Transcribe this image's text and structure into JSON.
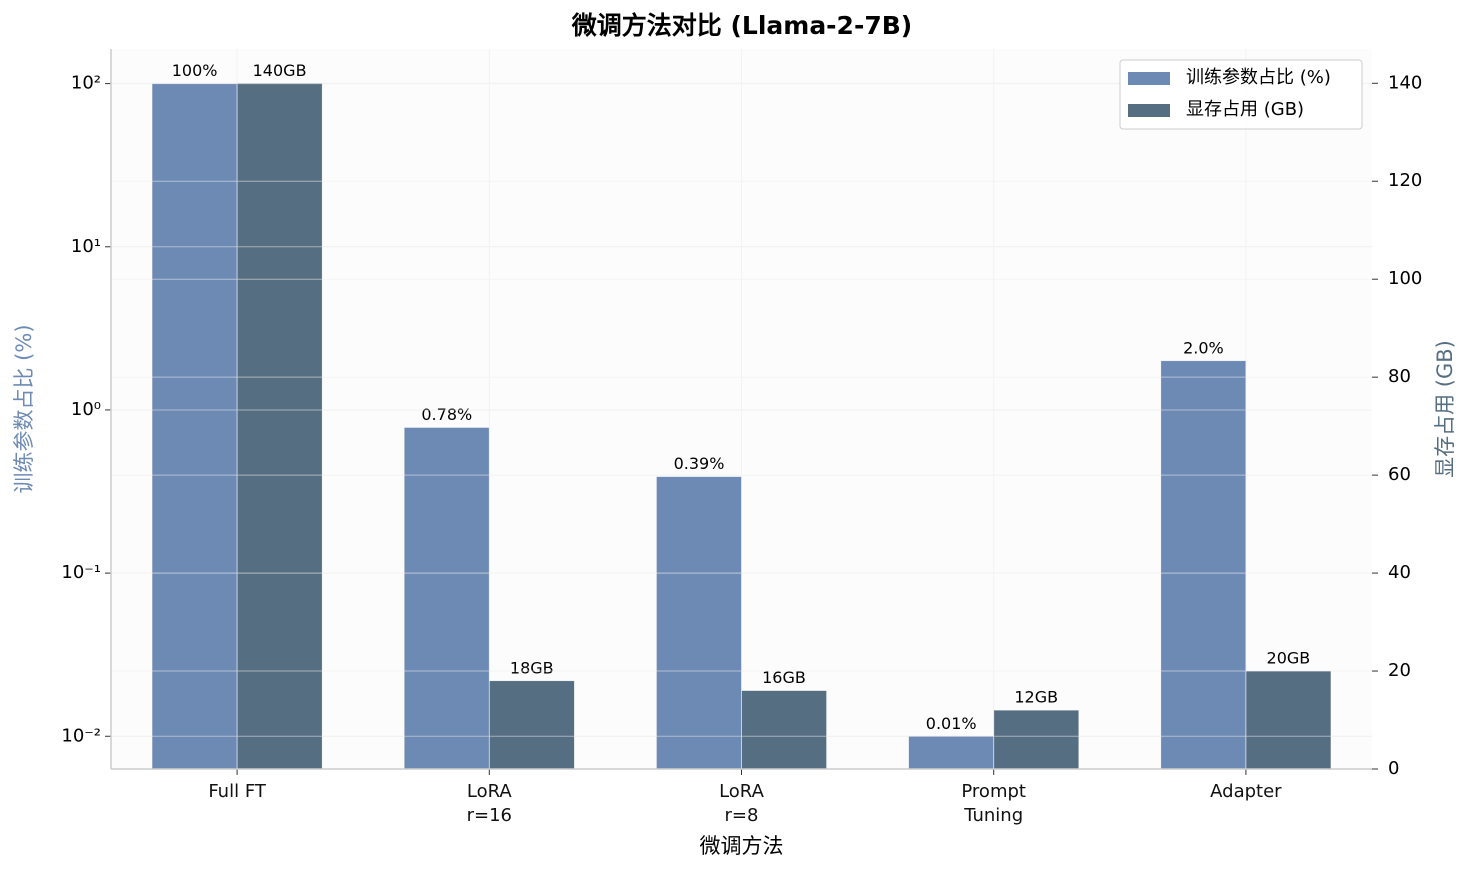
{
  "chart_data": {
    "type": "bar",
    "title": "微调方法对比 (Llama-2-7B)",
    "x_label": "微调方法",
    "y_label": "训练参数占比 (%)",
    "y2_label": "显存占用 (GB)",
    "categories": [
      "Full FT",
      "LoRA\nr=16",
      "LoRA\nr=8",
      "Prompt\nTuning",
      "Adapter"
    ],
    "y_scale": "log",
    "ylim": [
      0.0063,
      163
    ],
    "yticks": [
      {
        "value": 0.01,
        "label": "10⁻²"
      },
      {
        "value": 0.1,
        "label": "10⁻¹"
      },
      {
        "value": 1,
        "label": "10⁰"
      },
      {
        "value": 10,
        "label": "10¹"
      },
      {
        "value": 100,
        "label": "10²"
      }
    ],
    "y2lim": [
      0,
      147
    ],
    "y2ticks": [
      0,
      20,
      40,
      60,
      80,
      100,
      120,
      140
    ],
    "grid": true,
    "legend": "upper right",
    "series": [
      {
        "name": "训练参数占比 (%)",
        "color": "#6d8ab5",
        "values": [
          100,
          0.78,
          0.39,
          0.01,
          2.0
        ],
        "value_labels": [
          "100%",
          "0.78%",
          "0.39%",
          "0.01%",
          "2.0%"
        ]
      },
      {
        "name": "显存占用 (GB)",
        "color": "#566e82",
        "axis": "y2",
        "values": [
          140,
          18,
          16,
          12,
          20
        ],
        "value_labels": [
          "140GB",
          "18GB",
          "16GB",
          "12GB",
          "20GB"
        ]
      }
    ]
  }
}
